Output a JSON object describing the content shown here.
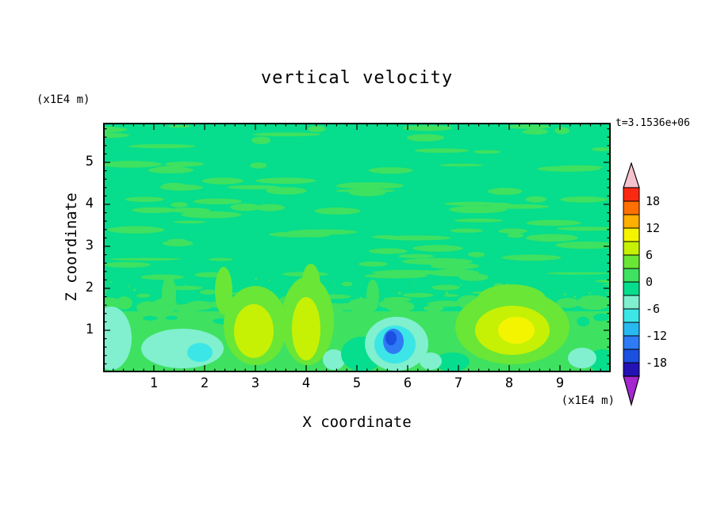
{
  "page": {
    "background": "#ffffff"
  },
  "chart": {
    "title": "vertical velocity",
    "time_label": "t=3.1536e+06",
    "x_axis": {
      "label": "X coordinate",
      "units_label": "(x1E4 m)",
      "tick_labels": [
        "1",
        "2",
        "3",
        "4",
        "5",
        "6",
        "7",
        "8",
        "9"
      ],
      "range": [
        0,
        10
      ]
    },
    "y_axis": {
      "label": "Z coordinate",
      "units_label": "(x1E4 m)",
      "tick_labels": [
        "1",
        "2",
        "3",
        "4",
        "5"
      ],
      "range": [
        0,
        5.95
      ]
    },
    "colorbar": {
      "tick_labels": [
        "18",
        "12",
        "6",
        "0",
        "-6",
        "-12",
        "-18"
      ],
      "level_max": 21,
      "level_min": -21,
      "level_step": 3,
      "segment_colors_top_to_bottom": [
        "#f92a11",
        "#ff7000",
        "#ffb000",
        "#f4f400",
        "#c6f104",
        "#6ae636",
        "#3fe160",
        "#06dd8d",
        "#80f0cf",
        "#3ce6e6",
        "#28b9f0",
        "#2e7bf5",
        "#1c50e0",
        "#2412b4"
      ],
      "over_color": "#f4c3ce",
      "under_color": "#a427cf"
    },
    "field_colors": {
      "base": "#06dd8d",
      "streak": "#3fe160",
      "green_bright": "#6ae636",
      "yellow_green": "#c6f104",
      "yellow": "#f4f400",
      "pale_aqua": "#80f0cf",
      "cyan": "#3ce6e6",
      "blue": "#2e7bf5",
      "deep_blue": "#1c50e0"
    }
  },
  "chart_data": {
    "type": "heatmap",
    "subtype": "filled-contour",
    "title": "vertical velocity",
    "xlabel": "X coordinate (x1E4 m)",
    "ylabel": "Z coordinate (x1E4 m)",
    "time_annotation": "t=3.1536e+06",
    "x_range": [
      0,
      10
    ],
    "z_range": [
      0,
      5.95
    ],
    "contour_levels": [
      -21,
      -18,
      -15,
      -12,
      -9,
      -6,
      -3,
      0,
      3,
      6,
      9,
      12,
      15,
      18,
      21
    ],
    "colorbar_tick_values": [
      18,
      12,
      6,
      0,
      -6,
      -12,
      -18
    ],
    "background_value_band": [
      -3,
      3
    ],
    "field_description": "Mostly near-zero green field with thin horizontal streaks of weakly positive velocity aloft; stronger convective cells confined below z~1.5e4 m.",
    "features": [
      {
        "x": 0.2,
        "z": 0.8,
        "value": -4.5,
        "type": "downdraft"
      },
      {
        "x": 1.6,
        "z": 0.5,
        "value": -7,
        "type": "downdraft"
      },
      {
        "x": 3.0,
        "z": 0.9,
        "value": 7.5,
        "type": "updraft"
      },
      {
        "x": 4.0,
        "z": 0.9,
        "value": 7.5,
        "type": "updraft"
      },
      {
        "x": 4.6,
        "z": 0.25,
        "value": -4.5,
        "type": "downdraft"
      },
      {
        "x": 5.7,
        "z": 0.7,
        "value": -14,
        "type": "downdraft"
      },
      {
        "x": 6.4,
        "z": 0.25,
        "value": -4.5,
        "type": "downdraft"
      },
      {
        "x": 8.1,
        "z": 0.9,
        "value": 10,
        "type": "updraft"
      },
      {
        "x": 9.4,
        "z": 0.3,
        "value": -4.5,
        "type": "downdraft"
      }
    ]
  }
}
